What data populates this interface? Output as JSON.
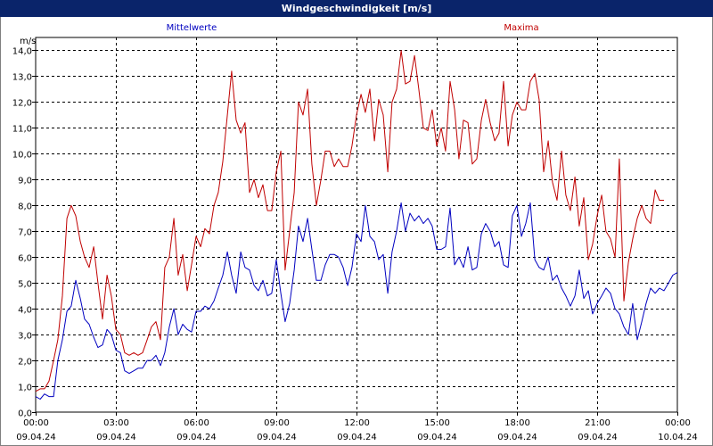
{
  "window": {
    "title": "Windgeschwindigkeit [m/s]"
  },
  "chart_data": {
    "type": "line",
    "title": "Windgeschwindigkeit [m/s]",
    "ylabel": "m/s",
    "ylim": [
      0,
      14.5
    ],
    "yticks": [
      "0,0",
      "1,0",
      "2,0",
      "3,0",
      "4,0",
      "5,0",
      "6,0",
      "7,0",
      "8,0",
      "9,0",
      "10,0",
      "11,0",
      "12,0",
      "13,0",
      "14,0"
    ],
    "xlim": [
      0,
      24
    ],
    "xticks": [
      {
        "time": "00:00",
        "date": "09.04.24"
      },
      {
        "time": "03:00",
        "date": "09.04.24"
      },
      {
        "time": "06:00",
        "date": "09.04.24"
      },
      {
        "time": "09:00",
        "date": "09.04.24"
      },
      {
        "time": "12:00",
        "date": "09.04.24"
      },
      {
        "time": "15:00",
        "date": "09.04.24"
      },
      {
        "time": "18:00",
        "date": "09.04.24"
      },
      {
        "time": "21:00",
        "date": "09.04.24"
      },
      {
        "time": "00:00",
        "date": "10.04.24"
      }
    ],
    "grid": true,
    "series": [
      {
        "name": "Mittelwerte",
        "color": "#0000c0",
        "points": [
          [
            0.0,
            0.6
          ],
          [
            0.17,
            0.5
          ],
          [
            0.33,
            0.7
          ],
          [
            0.5,
            0.6
          ],
          [
            0.67,
            0.6
          ],
          [
            0.83,
            2.0
          ],
          [
            1.0,
            2.8
          ],
          [
            1.17,
            3.9
          ],
          [
            1.33,
            4.1
          ],
          [
            1.5,
            5.1
          ],
          [
            1.67,
            4.4
          ],
          [
            1.83,
            3.6
          ],
          [
            2.0,
            3.4
          ],
          [
            2.17,
            2.9
          ],
          [
            2.33,
            2.5
          ],
          [
            2.5,
            2.6
          ],
          [
            2.67,
            3.2
          ],
          [
            2.83,
            3.0
          ],
          [
            3.0,
            2.4
          ],
          [
            3.17,
            2.3
          ],
          [
            3.33,
            1.6
          ],
          [
            3.5,
            1.5
          ],
          [
            3.67,
            1.6
          ],
          [
            3.83,
            1.7
          ],
          [
            4.0,
            1.7
          ],
          [
            4.17,
            2.0
          ],
          [
            4.33,
            2.0
          ],
          [
            4.5,
            2.2
          ],
          [
            4.67,
            1.8
          ],
          [
            4.83,
            2.3
          ],
          [
            5.0,
            3.3
          ],
          [
            5.17,
            4.0
          ],
          [
            5.33,
            3.0
          ],
          [
            5.5,
            3.4
          ],
          [
            5.67,
            3.2
          ],
          [
            5.83,
            3.1
          ],
          [
            6.0,
            3.9
          ],
          [
            6.17,
            3.9
          ],
          [
            6.33,
            4.1
          ],
          [
            6.5,
            4.0
          ],
          [
            6.67,
            4.3
          ],
          [
            6.83,
            4.8
          ],
          [
            7.0,
            5.3
          ],
          [
            7.17,
            6.2
          ],
          [
            7.33,
            5.3
          ],
          [
            7.5,
            4.6
          ],
          [
            7.67,
            6.2
          ],
          [
            7.83,
            5.6
          ],
          [
            8.0,
            5.5
          ],
          [
            8.17,
            4.9
          ],
          [
            8.33,
            4.7
          ],
          [
            8.5,
            5.1
          ],
          [
            8.67,
            4.5
          ],
          [
            8.83,
            4.6
          ],
          [
            9.0,
            5.9
          ],
          [
            9.17,
            4.6
          ],
          [
            9.33,
            3.5
          ],
          [
            9.5,
            4.2
          ],
          [
            9.67,
            5.5
          ],
          [
            9.83,
            7.2
          ],
          [
            10.0,
            6.6
          ],
          [
            10.17,
            7.5
          ],
          [
            10.33,
            6.3
          ],
          [
            10.5,
            5.1
          ],
          [
            10.67,
            5.1
          ],
          [
            10.83,
            5.7
          ],
          [
            11.0,
            6.1
          ],
          [
            11.17,
            6.1
          ],
          [
            11.33,
            6.0
          ],
          [
            11.5,
            5.6
          ],
          [
            11.67,
            4.9
          ],
          [
            11.83,
            5.6
          ],
          [
            12.0,
            6.9
          ],
          [
            12.17,
            6.6
          ],
          [
            12.33,
            8.0
          ],
          [
            12.5,
            6.8
          ],
          [
            12.67,
            6.6
          ],
          [
            12.83,
            5.9
          ],
          [
            13.0,
            6.1
          ],
          [
            13.17,
            4.6
          ],
          [
            13.33,
            6.2
          ],
          [
            13.5,
            7.0
          ],
          [
            13.67,
            8.1
          ],
          [
            13.83,
            7.0
          ],
          [
            14.0,
            7.7
          ],
          [
            14.17,
            7.4
          ],
          [
            14.33,
            7.6
          ],
          [
            14.5,
            7.3
          ],
          [
            14.67,
            7.5
          ],
          [
            14.83,
            7.2
          ],
          [
            15.0,
            6.3
          ],
          [
            15.17,
            6.3
          ],
          [
            15.33,
            6.4
          ],
          [
            15.5,
            7.9
          ],
          [
            15.67,
            5.7
          ],
          [
            15.83,
            6.0
          ],
          [
            16.0,
            5.6
          ],
          [
            16.17,
            6.4
          ],
          [
            16.33,
            5.5
          ],
          [
            16.5,
            5.6
          ],
          [
            16.67,
            6.9
          ],
          [
            16.83,
            7.3
          ],
          [
            17.0,
            7.0
          ],
          [
            17.17,
            6.4
          ],
          [
            17.33,
            6.6
          ],
          [
            17.5,
            5.7
          ],
          [
            17.67,
            5.6
          ],
          [
            17.83,
            7.6
          ],
          [
            18.0,
            8.0
          ],
          [
            18.17,
            6.8
          ],
          [
            18.33,
            7.3
          ],
          [
            18.5,
            8.1
          ],
          [
            18.67,
            5.9
          ],
          [
            18.83,
            5.6
          ],
          [
            19.0,
            5.5
          ],
          [
            19.17,
            6.0
          ],
          [
            19.33,
            5.1
          ],
          [
            19.5,
            5.3
          ],
          [
            19.67,
            4.8
          ],
          [
            19.83,
            4.5
          ],
          [
            20.0,
            4.1
          ],
          [
            20.17,
            4.5
          ],
          [
            20.33,
            5.5
          ],
          [
            20.5,
            4.4
          ],
          [
            20.67,
            4.7
          ],
          [
            20.83,
            3.8
          ],
          [
            21.0,
            4.2
          ],
          [
            21.17,
            4.5
          ],
          [
            21.33,
            4.8
          ],
          [
            21.5,
            4.6
          ],
          [
            21.67,
            4.0
          ],
          [
            21.83,
            3.8
          ],
          [
            22.0,
            3.3
          ],
          [
            22.17,
            3.0
          ],
          [
            22.33,
            4.2
          ],
          [
            22.5,
            2.8
          ],
          [
            22.67,
            3.5
          ],
          [
            22.83,
            4.2
          ],
          [
            23.0,
            4.8
          ],
          [
            23.17,
            4.6
          ],
          [
            23.33,
            4.8
          ],
          [
            23.5,
            4.7
          ],
          [
            23.67,
            5.0
          ],
          [
            23.83,
            5.3
          ],
          [
            24.0,
            5.4
          ]
        ]
      },
      {
        "name": "Maxima",
        "color": "#c00000",
        "points": [
          [
            0.0,
            0.8
          ],
          [
            0.17,
            0.9
          ],
          [
            0.33,
            0.9
          ],
          [
            0.5,
            1.2
          ],
          [
            0.67,
            2.0
          ],
          [
            0.83,
            2.8
          ],
          [
            1.0,
            4.5
          ],
          [
            1.17,
            7.5
          ],
          [
            1.33,
            8.0
          ],
          [
            1.5,
            7.6
          ],
          [
            1.67,
            6.6
          ],
          [
            1.83,
            6.0
          ],
          [
            2.0,
            5.6
          ],
          [
            2.17,
            6.4
          ],
          [
            2.33,
            5.0
          ],
          [
            2.5,
            3.6
          ],
          [
            2.67,
            5.3
          ],
          [
            2.83,
            4.5
          ],
          [
            3.0,
            3.2
          ],
          [
            3.17,
            3.0
          ],
          [
            3.33,
            2.3
          ],
          [
            3.5,
            2.2
          ],
          [
            3.67,
            2.3
          ],
          [
            3.83,
            2.2
          ],
          [
            4.0,
            2.3
          ],
          [
            4.17,
            2.8
          ],
          [
            4.33,
            3.3
          ],
          [
            4.5,
            3.5
          ],
          [
            4.67,
            2.8
          ],
          [
            4.83,
            5.6
          ],
          [
            5.0,
            6.0
          ],
          [
            5.17,
            7.5
          ],
          [
            5.33,
            5.3
          ],
          [
            5.5,
            6.1
          ],
          [
            5.67,
            4.7
          ],
          [
            5.83,
            5.7
          ],
          [
            6.0,
            6.8
          ],
          [
            6.17,
            6.4
          ],
          [
            6.33,
            7.1
          ],
          [
            6.5,
            6.9
          ],
          [
            6.67,
            8.0
          ],
          [
            6.83,
            8.5
          ],
          [
            7.0,
            9.7
          ],
          [
            7.17,
            11.5
          ],
          [
            7.33,
            13.2
          ],
          [
            7.5,
            11.3
          ],
          [
            7.67,
            10.8
          ],
          [
            7.83,
            11.2
          ],
          [
            8.0,
            8.5
          ],
          [
            8.17,
            9.0
          ],
          [
            8.33,
            8.3
          ],
          [
            8.5,
            8.8
          ],
          [
            8.67,
            7.8
          ],
          [
            8.83,
            7.8
          ],
          [
            9.0,
            9.3
          ],
          [
            9.17,
            10.1
          ],
          [
            9.33,
            5.5
          ],
          [
            9.5,
            7.0
          ],
          [
            9.67,
            8.5
          ],
          [
            9.83,
            12.0
          ],
          [
            10.0,
            11.5
          ],
          [
            10.17,
            12.5
          ],
          [
            10.33,
            9.6
          ],
          [
            10.5,
            8.0
          ],
          [
            10.67,
            9.0
          ],
          [
            10.83,
            10.1
          ],
          [
            11.0,
            10.1
          ],
          [
            11.17,
            9.5
          ],
          [
            11.33,
            9.8
          ],
          [
            11.5,
            9.5
          ],
          [
            11.67,
            9.5
          ],
          [
            11.83,
            10.3
          ],
          [
            12.0,
            11.5
          ],
          [
            12.17,
            12.3
          ],
          [
            12.33,
            11.6
          ],
          [
            12.5,
            12.5
          ],
          [
            12.67,
            10.5
          ],
          [
            12.83,
            12.1
          ],
          [
            13.0,
            11.5
          ],
          [
            13.17,
            9.3
          ],
          [
            13.33,
            12.0
          ],
          [
            13.5,
            12.5
          ],
          [
            13.67,
            14.0
          ],
          [
            13.83,
            12.7
          ],
          [
            14.0,
            12.8
          ],
          [
            14.17,
            13.8
          ],
          [
            14.33,
            12.5
          ],
          [
            14.5,
            11.0
          ],
          [
            14.67,
            10.9
          ],
          [
            14.83,
            11.7
          ],
          [
            15.0,
            10.3
          ],
          [
            15.17,
            11.0
          ],
          [
            15.33,
            10.1
          ],
          [
            15.5,
            12.8
          ],
          [
            15.67,
            11.7
          ],
          [
            15.83,
            9.8
          ],
          [
            16.0,
            11.3
          ],
          [
            16.17,
            11.2
          ],
          [
            16.33,
            9.6
          ],
          [
            16.5,
            9.8
          ],
          [
            16.67,
            11.3
          ],
          [
            16.83,
            12.1
          ],
          [
            17.0,
            11.2
          ],
          [
            17.17,
            10.5
          ],
          [
            17.33,
            10.8
          ],
          [
            17.5,
            12.8
          ],
          [
            17.67,
            10.3
          ],
          [
            17.83,
            11.5
          ],
          [
            18.0,
            12.0
          ],
          [
            18.17,
            11.7
          ],
          [
            18.33,
            11.7
          ],
          [
            18.5,
            12.8
          ],
          [
            18.67,
            13.1
          ],
          [
            18.83,
            12.1
          ],
          [
            19.0,
            9.3
          ],
          [
            19.17,
            10.5
          ],
          [
            19.33,
            8.9
          ],
          [
            19.5,
            8.2
          ],
          [
            19.67,
            10.1
          ],
          [
            19.83,
            8.4
          ],
          [
            20.0,
            7.8
          ],
          [
            20.17,
            9.1
          ],
          [
            20.33,
            7.2
          ],
          [
            20.5,
            8.3
          ],
          [
            20.67,
            5.9
          ],
          [
            20.83,
            6.5
          ],
          [
            21.0,
            7.6
          ],
          [
            21.17,
            8.4
          ],
          [
            21.33,
            7.0
          ],
          [
            21.5,
            6.7
          ],
          [
            21.67,
            6.0
          ],
          [
            21.83,
            9.8
          ],
          [
            22.0,
            4.3
          ],
          [
            22.17,
            5.8
          ],
          [
            22.33,
            6.7
          ],
          [
            22.5,
            7.5
          ],
          [
            22.67,
            8.0
          ],
          [
            22.83,
            7.5
          ],
          [
            23.0,
            7.3
          ],
          [
            23.17,
            8.6
          ],
          [
            23.33,
            8.2
          ],
          [
            23.5,
            8.2
          ]
        ]
      }
    ]
  }
}
